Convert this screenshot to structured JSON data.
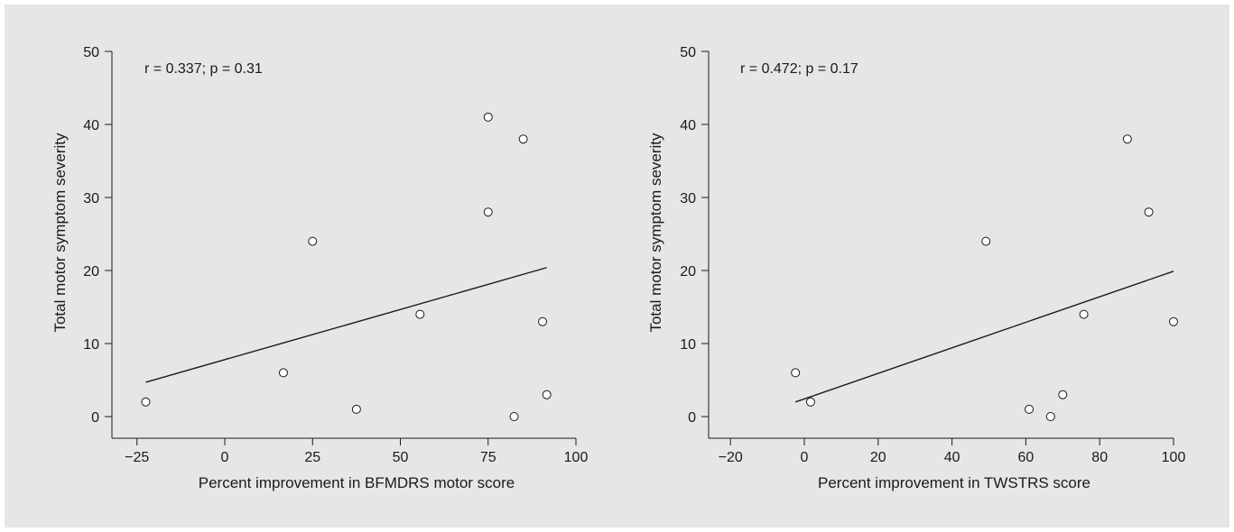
{
  "chart_data": [
    {
      "type": "scatter",
      "xlabel": "Percent improvement in BFMDRS motor score",
      "ylabel": "Total motor symptom severity",
      "annotation": "r = 0.337; p = 0.31",
      "xlim": [
        -30,
        100
      ],
      "ylim": [
        -3,
        50
      ],
      "xticks": [
        -25,
        0,
        25,
        50,
        75,
        100
      ],
      "xtick_labels": [
        "−25",
        "0",
        "25",
        "50",
        "75",
        "100"
      ],
      "yticks": [
        0,
        10,
        20,
        30,
        40,
        50
      ],
      "ytick_labels": [
        "0",
        "10",
        "20",
        "30",
        "40",
        "50"
      ],
      "points": [
        {
          "x": -22.5,
          "y": 2
        },
        {
          "x": 16.7,
          "y": 6
        },
        {
          "x": 25,
          "y": 24
        },
        {
          "x": 37.5,
          "y": 1
        },
        {
          "x": 55.6,
          "y": 14
        },
        {
          "x": 75,
          "y": 41
        },
        {
          "x": 75,
          "y": 28
        },
        {
          "x": 85,
          "y": 38
        },
        {
          "x": 90.5,
          "y": 13
        },
        {
          "x": 82.4,
          "y": 0
        },
        {
          "x": 91.7,
          "y": 3
        }
      ],
      "fit_line": {
        "x": [
          -22.5,
          91.7
        ],
        "y": [
          4.7,
          20.4
        ]
      }
    },
    {
      "type": "scatter",
      "xlabel": "Percent improvement in TWSTRS score",
      "ylabel": "Total motor symptom severity",
      "annotation": "r = 0.472; p = 0.17",
      "xlim": [
        -26,
        100
      ],
      "ylim": [
        -3,
        50
      ],
      "xticks": [
        -20,
        0,
        20,
        40,
        60,
        80,
        100
      ],
      "xtick_labels": [
        "−20",
        "0",
        "20",
        "40",
        "60",
        "80",
        "100"
      ],
      "yticks": [
        0,
        10,
        20,
        30,
        40,
        50
      ],
      "ytick_labels": [
        "0",
        "10",
        "20",
        "30",
        "40",
        "50"
      ],
      "points": [
        {
          "x": -2.4,
          "y": 6
        },
        {
          "x": 1.7,
          "y": 2
        },
        {
          "x": 49.2,
          "y": 24
        },
        {
          "x": 60.9,
          "y": 1
        },
        {
          "x": 66.7,
          "y": 0
        },
        {
          "x": 70,
          "y": 3
        },
        {
          "x": 75.7,
          "y": 14
        },
        {
          "x": 87.5,
          "y": 38
        },
        {
          "x": 93.3,
          "y": 28
        },
        {
          "x": 100,
          "y": 13
        }
      ],
      "fit_line": {
        "x": [
          -2.4,
          100
        ],
        "y": [
          2,
          19.9
        ]
      }
    }
  ]
}
